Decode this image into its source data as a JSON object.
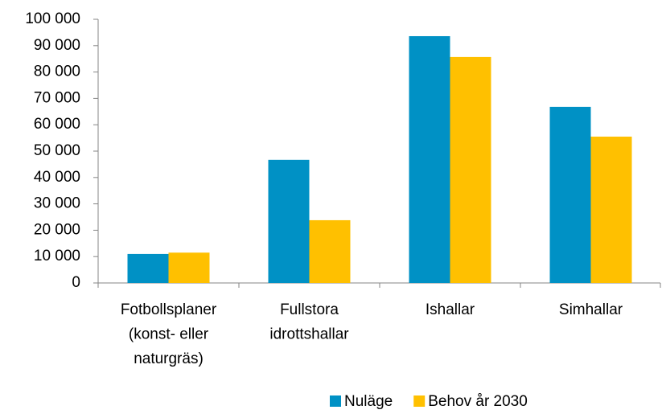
{
  "chart_data": {
    "type": "bar",
    "categories": [
      "Fotbollsplaner\n(konst- eller\nnaturgräs)",
      "Fullstora\nidrottshallar",
      "Ishallar",
      "Simhallar"
    ],
    "series": [
      {
        "name": "Nuläge",
        "color": "#0091c5",
        "values": [
          11000,
          46700,
          93600,
          66800
        ]
      },
      {
        "name": "Behov år 2030",
        "color": "#ffc000",
        "values": [
          11500,
          23800,
          85700,
          55500
        ]
      }
    ],
    "ylim": [
      0,
      100000
    ],
    "yticks": [
      0,
      {
        "value": 10000,
        "label": "10 000"
      },
      {
        "value": 20000,
        "label": "20 000"
      },
      {
        "value": 30000,
        "label": "30 000"
      },
      {
        "value": 40000,
        "label": "40 000"
      },
      {
        "value": 50000,
        "label": "50 000"
      },
      {
        "value": 60000,
        "label": "60 000"
      },
      {
        "value": 70000,
        "label": "70 000"
      },
      {
        "value": 80000,
        "label": "80 000"
      },
      {
        "value": 90000,
        "label": "90 000"
      },
      {
        "value": 100000,
        "label": "100 000"
      }
    ],
    "grid": false,
    "legend": "bottom"
  }
}
